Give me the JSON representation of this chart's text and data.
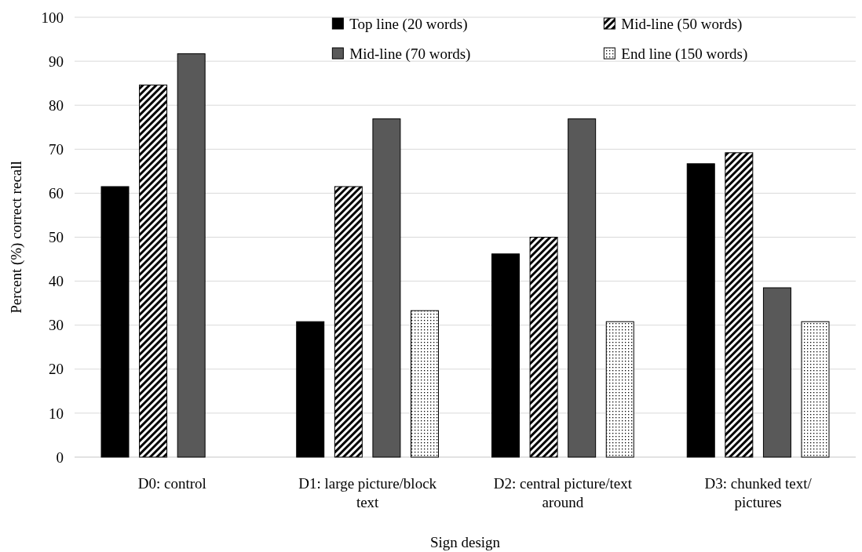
{
  "chart_data": {
    "type": "bar",
    "xlabel": "Sign design",
    "ylabel": "Percent (%) correct recall",
    "categories": [
      "D0: control",
      "D1: large picture/block text",
      "D2: central picture/text around",
      "D3: chunked text/ pictures"
    ],
    "series": [
      {
        "name": "Top line (20 words)",
        "color": "#000000",
        "values": [
          61.5,
          30.8,
          46.2,
          66.7
        ]
      },
      {
        "name": "Mid-line (50 words)",
        "color": "#000000",
        "values": [
          84.6,
          61.5,
          50.0,
          69.2
        ]
      },
      {
        "name": "Mid-line (70 words)",
        "color": "#595959",
        "values": [
          91.7,
          76.9,
          76.9,
          38.5
        ]
      },
      {
        "name": "End line (150 words)",
        "color": "#000000",
        "values": [
          null,
          33.3,
          30.8,
          30.8
        ]
      }
    ],
    "ylim": [
      0,
      100
    ],
    "yticks": [
      0,
      10,
      20,
      30,
      40,
      50,
      60,
      70,
      80,
      90,
      100
    ],
    "grid": "y",
    "legend": "top right"
  }
}
